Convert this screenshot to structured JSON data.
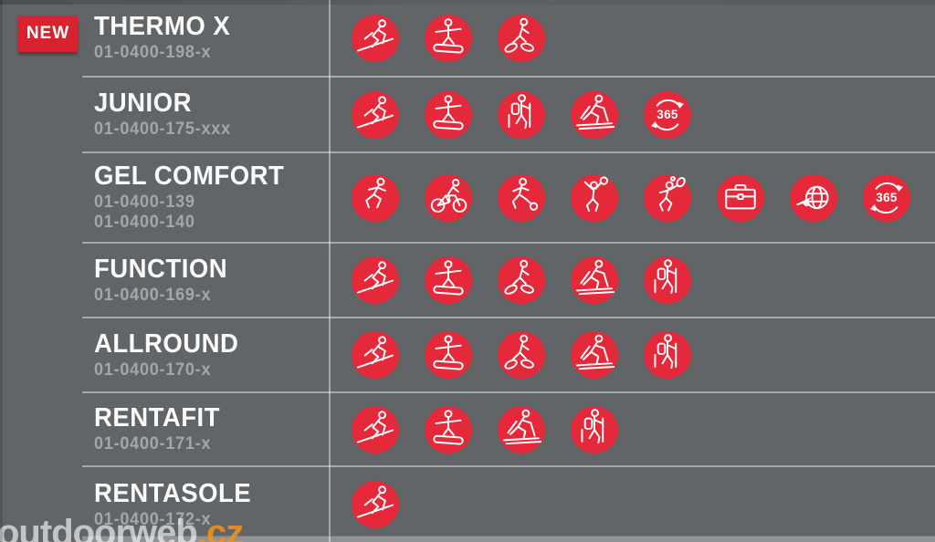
{
  "page": {
    "background_color": "#616568",
    "accent_red": "#e5293a",
    "badge_red": "#d8222f",
    "divider_color": "rgba(233,236,238,0.5)"
  },
  "badge": {
    "label": "NEW"
  },
  "watermark": {
    "name": "outdoorweb",
    "tld": ".cz"
  },
  "icon_365_label": "365",
  "products": [
    {
      "name": "THERMO X",
      "codes": [
        "01-0400-198-x"
      ],
      "activities": [
        "ski",
        "snowboard",
        "snowshoe"
      ]
    },
    {
      "name": "JUNIOR",
      "codes": [
        "01-0400-175-xxx"
      ],
      "activities": [
        "ski",
        "snowboard",
        "hiking",
        "cross-country-ski",
        "365"
      ]
    },
    {
      "name": "GEL COMFORT",
      "codes": [
        "01-0400-139",
        "01-0400-140"
      ],
      "activities": [
        "running",
        "cycling",
        "soccer",
        "volleyball",
        "tennis",
        "business",
        "travel",
        "365"
      ]
    },
    {
      "name": "FUNCTION",
      "codes": [
        "01-0400-169-x"
      ],
      "activities": [
        "ski",
        "snowboard",
        "snowshoe",
        "cross-country-ski",
        "hiking"
      ]
    },
    {
      "name": "ALLROUND",
      "codes": [
        "01-0400-170-x"
      ],
      "activities": [
        "ski",
        "snowboard",
        "snowshoe",
        "cross-country-ski",
        "hiking"
      ]
    },
    {
      "name": "RENTAFIT",
      "codes": [
        "01-0400-171-x"
      ],
      "activities": [
        "ski",
        "snowboard",
        "cross-country-ski",
        "hiking"
      ]
    },
    {
      "name": "RENTASOLE",
      "codes": [
        "01-0400-172-x"
      ],
      "activities": [
        "ski"
      ]
    }
  ]
}
